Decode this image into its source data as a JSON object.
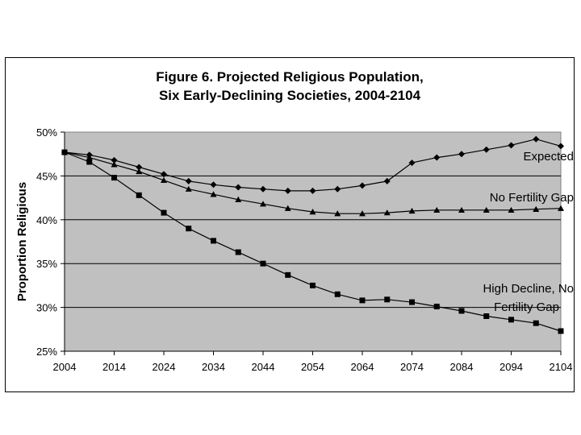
{
  "chart_data": {
    "type": "line",
    "title_lines": [
      "Figure 6. Projected Religious Population,",
      "Six Early-Declining Societies, 2004-2104"
    ],
    "xlabel": "",
    "ylabel": "Proportion Religious",
    "x": [
      2004,
      2009,
      2014,
      2019,
      2024,
      2029,
      2034,
      2039,
      2044,
      2049,
      2054,
      2059,
      2064,
      2069,
      2074,
      2079,
      2084,
      2089,
      2094,
      2099,
      2104
    ],
    "x_tick_labels": [
      "2004",
      "2014",
      "2024",
      "2034",
      "2044",
      "2054",
      "2064",
      "2074",
      "2084",
      "2094",
      "2104"
    ],
    "x_ticks": [
      2004,
      2014,
      2024,
      2034,
      2044,
      2054,
      2064,
      2074,
      2084,
      2094,
      2104
    ],
    "xlim": [
      2004,
      2104
    ],
    "ylim": [
      25,
      50
    ],
    "y_ticks": [
      25,
      30,
      35,
      40,
      45,
      50
    ],
    "y_tick_labels": [
      "25%",
      "30%",
      "35%",
      "40%",
      "45%",
      "50%"
    ],
    "grid": "horizontal",
    "plot_background": "#c0c0c0",
    "series": [
      {
        "name": "Expected",
        "label_lines": [
          "Expected"
        ],
        "marker": "diamond",
        "values": [
          47.7,
          47.4,
          46.8,
          46.0,
          45.2,
          44.4,
          44.0,
          43.7,
          43.5,
          43.3,
          43.3,
          43.5,
          43.9,
          44.4,
          46.5,
          47.1,
          47.5,
          48.0,
          48.5,
          49.2,
          48.4
        ]
      },
      {
        "name": "No Fertility Gap",
        "label_lines": [
          "No Fertility Gap"
        ],
        "marker": "triangle",
        "values": [
          47.7,
          47.1,
          46.3,
          45.5,
          44.5,
          43.5,
          42.9,
          42.3,
          41.8,
          41.3,
          40.9,
          40.7,
          40.7,
          40.8,
          41.0,
          41.1,
          41.1,
          41.1,
          41.1,
          41.2,
          41.3
        ]
      },
      {
        "name": "High Decline, No Fertility Gap",
        "label_lines": [
          "High Decline, No",
          "Fertility Gap"
        ],
        "marker": "square",
        "values": [
          47.7,
          46.6,
          44.8,
          42.8,
          40.8,
          39.0,
          37.6,
          36.3,
          35.0,
          33.7,
          32.5,
          31.5,
          30.8,
          30.9,
          30.6,
          30.1,
          29.6,
          29.0,
          28.6,
          28.2,
          27.3
        ]
      }
    ]
  }
}
